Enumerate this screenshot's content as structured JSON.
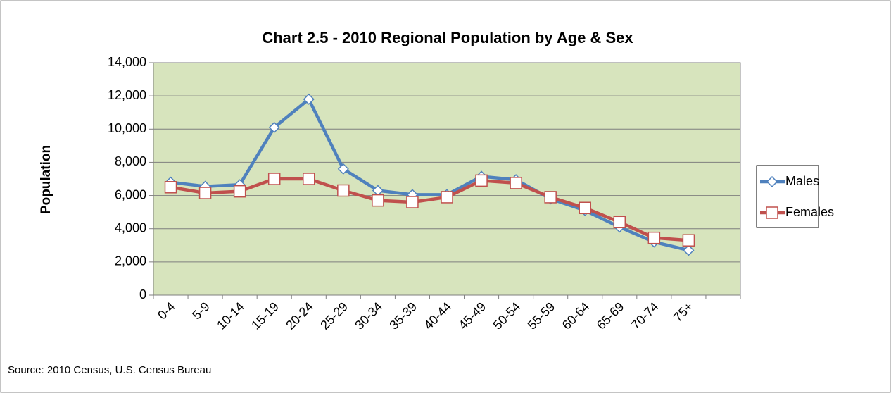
{
  "chart_data": {
    "type": "line",
    "title": "Chart 2.5 - 2010 Regional Population by Age & Sex",
    "y_label": "Population",
    "source": "Source: 2010 Census, U.S. Census Bureau",
    "categories": [
      "0-4",
      "5-9",
      "10-14",
      "15-19",
      "20-24",
      "25-29",
      "30-34",
      "35-39",
      "40-44",
      "45-49",
      "50-54",
      "55-59",
      "60-64",
      "65-69",
      "70-74",
      "75+",
      null
    ],
    "series": [
      {
        "name": "Males",
        "color": "#4f81bd",
        "marker": "diamond",
        "values": [
          6800,
          6550,
          6650,
          10100,
          11800,
          7600,
          6300,
          6050,
          6050,
          7150,
          6950,
          5800,
          5100,
          4100,
          3200,
          2700,
          null
        ]
      },
      {
        "name": "Females",
        "color": "#c0504d",
        "marker": "square",
        "values": [
          6500,
          6150,
          6250,
          7000,
          7000,
          6300,
          5700,
          5600,
          5900,
          6900,
          6750,
          5900,
          5250,
          4400,
          3450,
          3300,
          null
        ]
      }
    ],
    "ylim": [
      0,
      14000
    ],
    "yticks": [
      0,
      {
        "value": 2000,
        "label": "2,000"
      },
      {
        "value": 4000,
        "label": "4,000"
      },
      {
        "value": 6000,
        "label": "6,000"
      },
      {
        "value": 8000,
        "label": "8,000"
      },
      {
        "value": 10000,
        "label": "10,000"
      },
      {
        "value": 12000,
        "label": "12,000"
      },
      {
        "value": 14000,
        "label": "14,000"
      }
    ],
    "grid": true,
    "plot_background": "#d7e4bd",
    "legend": "right"
  }
}
